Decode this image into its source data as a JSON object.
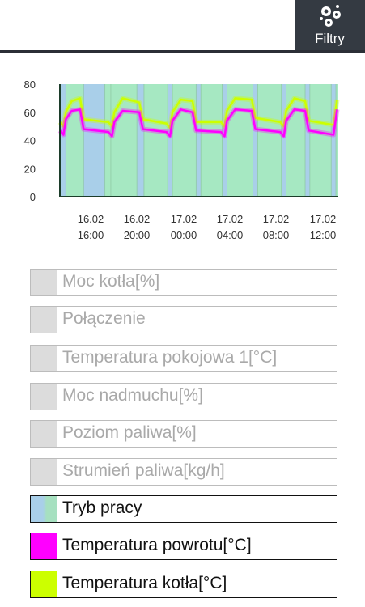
{
  "header": {
    "filter_label": "Filtry",
    "filter_icon": "filter-dots-icon"
  },
  "chart_data": {
    "type": "line",
    "ylim": [
      0,
      80
    ],
    "yticks": [
      0,
      20,
      40,
      60,
      80
    ],
    "xtick_labels": [
      [
        "16.02",
        "16:00"
      ],
      [
        "16.02",
        "20:00"
      ],
      [
        "17.02",
        "00:00"
      ],
      [
        "17.02",
        "04:00"
      ],
      [
        "17.02",
        "08:00"
      ],
      [
        "17.02",
        "12:00"
      ]
    ],
    "x_start_hour": 13.5,
    "x_end_hour": 37.0,
    "series": [
      {
        "name": "Temperatura kotła[°C]",
        "color": "#ccff00",
        "x_hours": [
          13.5,
          13.8,
          14.0,
          14.5,
          15.2,
          15.5,
          17.6,
          17.9,
          18.1,
          18.8,
          20.2,
          20.5,
          22.5,
          22.8,
          23.0,
          23.7,
          24.7,
          25.0,
          27.1,
          27.4,
          27.6,
          28.3,
          29.7,
          30.0,
          32.1,
          32.4,
          32.6,
          33.3,
          34.2,
          34.5,
          36.6,
          36.9
        ],
        "values": [
          53,
          50,
          60,
          68,
          70,
          55,
          53,
          50,
          60,
          70,
          67,
          55,
          52,
          49,
          60,
          69,
          68,
          53,
          53,
          50,
          61,
          70,
          69,
          56,
          53,
          50,
          61,
          70,
          68,
          54,
          51,
          69
        ]
      },
      {
        "name": "Temperatura powrotu[°C]",
        "color": "#ff00ff",
        "x_hours": [
          13.5,
          13.8,
          14.0,
          14.5,
          15.2,
          15.5,
          17.6,
          17.9,
          18.1,
          18.8,
          20.2,
          20.5,
          22.5,
          22.8,
          23.0,
          23.7,
          24.7,
          25.0,
          27.1,
          27.4,
          27.6,
          28.3,
          29.7,
          30.0,
          32.1,
          32.4,
          32.6,
          33.3,
          34.2,
          34.5,
          36.6,
          36.9
        ],
        "values": [
          47,
          44,
          55,
          61,
          62,
          48,
          46,
          43,
          53,
          61,
          60,
          48,
          46,
          43,
          54,
          62,
          60,
          47,
          46,
          43,
          54,
          62,
          61,
          48,
          46,
          43,
          54,
          62,
          61,
          47,
          44,
          62
        ]
      }
    ],
    "mode_series": {
      "name": "Tryb pracy",
      "colors": {
        "work": "#a6e8c2",
        "idle": "#a9cfe9"
      },
      "segments": [
        {
          "from": 13.5,
          "to": 14.0,
          "mode": "idle"
        },
        {
          "from": 14.0,
          "to": 15.5,
          "mode": "work"
        },
        {
          "from": 15.5,
          "to": 17.3,
          "mode": "idle"
        },
        {
          "from": 17.3,
          "to": 17.8,
          "mode": "work"
        },
        {
          "from": 17.8,
          "to": 20.0,
          "mode": "work"
        },
        {
          "from": 20.0,
          "to": 20.6,
          "mode": "idle"
        },
        {
          "from": 20.6,
          "to": 22.6,
          "mode": "work"
        },
        {
          "from": 22.6,
          "to": 23.0,
          "mode": "idle"
        },
        {
          "from": 23.0,
          "to": 25.0,
          "mode": "work"
        },
        {
          "from": 25.0,
          "to": 25.4,
          "mode": "idle"
        },
        {
          "from": 25.4,
          "to": 27.2,
          "mode": "work"
        },
        {
          "from": 27.2,
          "to": 27.6,
          "mode": "idle"
        },
        {
          "from": 27.6,
          "to": 29.8,
          "mode": "work"
        },
        {
          "from": 29.8,
          "to": 30.2,
          "mode": "idle"
        },
        {
          "from": 30.2,
          "to": 32.2,
          "mode": "work"
        },
        {
          "from": 32.2,
          "to": 32.6,
          "mode": "idle"
        },
        {
          "from": 32.6,
          "to": 34.2,
          "mode": "work"
        },
        {
          "from": 34.2,
          "to": 34.6,
          "mode": "idle"
        },
        {
          "from": 34.6,
          "to": 36.4,
          "mode": "work"
        },
        {
          "from": 36.4,
          "to": 36.8,
          "mode": "idle"
        },
        {
          "from": 36.8,
          "to": 37.0,
          "mode": "work"
        }
      ]
    }
  },
  "legend": [
    {
      "label": "Moc kotła[%]",
      "active": false,
      "color": "#dcdcdc"
    },
    {
      "label": "Połączenie",
      "active": false,
      "color": "#dcdcdc"
    },
    {
      "label": "Temperatura pokojowa 1[°C]",
      "active": false,
      "color": "#dcdcdc"
    },
    {
      "label": "Moc nadmuchu[%]",
      "active": false,
      "color": "#dcdcdc"
    },
    {
      "label": "Poziom paliwa[%]",
      "active": false,
      "color": "#dcdcdc"
    },
    {
      "label": "Strumień paliwa[kg/h]",
      "active": false,
      "color": "#dcdcdc"
    },
    {
      "label": "Tryb pracy",
      "active": true,
      "color": "mode"
    },
    {
      "label": "Temperatura powrotu[°C]",
      "active": true,
      "color": "#ff00ff"
    },
    {
      "label": "Temperatura kotła[°C]",
      "active": true,
      "color": "#ccff00"
    }
  ]
}
